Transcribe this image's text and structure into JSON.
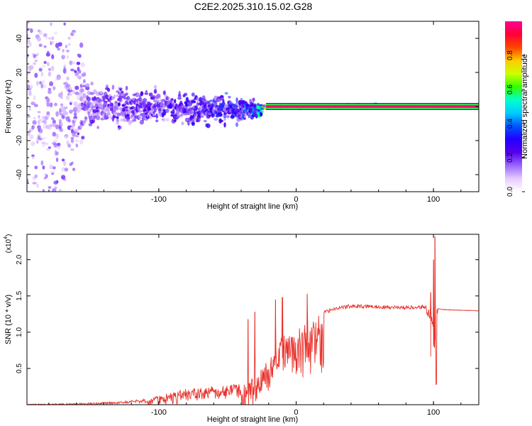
{
  "chart_data": [
    {
      "type": "heatmap",
      "title": "C2E2.2025.310.15.02.G28",
      "xlabel": "Height of straight line (km)",
      "ylabel": "Frequency (Hz)",
      "xlim": [
        -196,
        133
      ],
      "ylim": [
        -50,
        50
      ],
      "xticks": [
        -100,
        0,
        100
      ],
      "yticks": [
        -40,
        -20,
        0,
        20,
        40
      ],
      "xtick_labels": [
        "-100",
        "0",
        "100"
      ],
      "ytick_labels": [
        "-40",
        "-20",
        "0",
        "20",
        "40"
      ],
      "colorbar": {
        "label": "Normalized spectral amplitude",
        "range": [
          0,
          1
        ],
        "ticks": [
          0.0,
          0.2,
          0.4,
          0.6,
          0.8
        ],
        "tick_labels": [
          "0.0",
          "0.2",
          "0.4",
          "0.6",
          "0.8"
        ],
        "colors": [
          "#ffffff",
          "#e6ccff",
          "#9966ff",
          "#5500ee",
          "#2200ff",
          "#0055ff",
          "#00ccff",
          "#00ffcc",
          "#33ff00",
          "#ccff00",
          "#ffcc00",
          "#ff4400",
          "#ff0033",
          "#ff0099"
        ]
      },
      "description_points": [
        {
          "x": -180,
          "y": 0,
          "spread": 50,
          "amp": 0.15
        },
        {
          "x": -150,
          "y": 0,
          "spread": 10,
          "amp": 0.18
        },
        {
          "x": -100,
          "y": 0,
          "spread": 8,
          "amp": 0.22
        },
        {
          "x": -60,
          "y": -2,
          "spread": 7,
          "amp": 0.28
        },
        {
          "x": -30,
          "y": -2,
          "spread": 5,
          "amp": 0.35
        },
        {
          "x": -20,
          "y": 0,
          "spread": 1,
          "amp": 0.9
        },
        {
          "x": 0,
          "y": 0,
          "spread": 1,
          "amp": 0.95
        },
        {
          "x": 100,
          "y": 0,
          "spread": 1,
          "amp": 0.95
        },
        {
          "x": 133,
          "y": 0,
          "spread": 1,
          "amp": 0.95
        }
      ]
    },
    {
      "type": "line",
      "xlabel": "Height of straight line (km)",
      "ylabel": "SNR (10 * v/v)",
      "exponent_label": "(x10",
      "exponent_power": "4",
      "exponent_close": ")",
      "xlim": [
        -196,
        133
      ],
      "ylim": [
        0,
        2.35
      ],
      "xticks": [
        -100,
        0,
        100
      ],
      "yticks": [
        0.5,
        1.0,
        1.5,
        2.0
      ],
      "xtick_labels": [
        "-100",
        "0",
        "100"
      ],
      "ytick_labels": [
        "0.5",
        "1.0",
        "1.5",
        "2.0"
      ],
      "color": "#e8302a",
      "envelope": {
        "x": [
          -196,
          -160,
          -130,
          -110,
          -100,
          -80,
          -60,
          -45,
          -35,
          -30,
          -25,
          -20,
          -15,
          -10,
          -5,
          0,
          5,
          10,
          15,
          20,
          30,
          40,
          60,
          80,
          92,
          96,
          98,
          100,
          101,
          102,
          103,
          106,
          115,
          133
        ],
        "y": [
          0.01,
          0.02,
          0.04,
          0.08,
          0.12,
          0.22,
          0.26,
          0.28,
          0.32,
          0.4,
          0.55,
          0.6,
          0.8,
          0.95,
          0.98,
          1.05,
          1.1,
          1.18,
          1.22,
          1.27,
          1.33,
          1.36,
          1.35,
          1.34,
          1.35,
          1.33,
          1.3,
          1.15,
          0.7,
          1.36,
          1.33,
          1.32,
          1.31,
          1.3
        ]
      },
      "spikes": [
        {
          "x": -35,
          "y": 1.18
        },
        {
          "x": -30,
          "y": 1.28
        },
        {
          "x": -15,
          "y": 1.45
        },
        {
          "x": -10,
          "y": 1.48
        },
        {
          "x": 8,
          "y": 1.53
        },
        {
          "x": 98,
          "y": 1.55
        },
        {
          "x": 100,
          "y": 2.0
        },
        {
          "x": 101,
          "y": 2.32
        },
        {
          "x": 102,
          "y": 0.28
        }
      ]
    }
  ]
}
